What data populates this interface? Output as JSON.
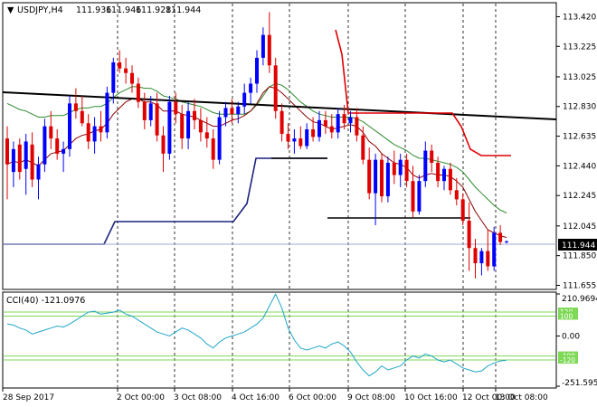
{
  "chart_data": [
    {
      "type": "candlestick",
      "title": "USDJPY,H4",
      "ohlc_header": {
        "open": "111.936",
        "high": "111.946",
        "low": "111.928",
        "close": "111.944"
      },
      "price_ticks": [
        "113.420",
        "113.225",
        "113.025",
        "112.830",
        "112.635",
        "112.440",
        "112.245",
        "112.045",
        "111.850",
        "111.655"
      ],
      "ylim": [
        111.64,
        113.5
      ],
      "current_price": "111.944",
      "current_price_value": 111.944,
      "time_labels": [
        "28 Sep 2017",
        "2 Oct 00:00",
        "3 Oct 08:00",
        "4 Oct 16:00",
        "6 Oct 00:00",
        "9 Oct 08:00",
        "10 Oct 16:00",
        "12 Oct 00:00",
        "13 Oct 08:00"
      ],
      "colors": {
        "bull": "#0000ff",
        "bear": "#e00000",
        "ma_fast": "#8b0000",
        "ma_slow": "#2e8b2e",
        "trend": "#000000",
        "stop_lower": "#1a237e",
        "stop_upper": "#e00000",
        "price_line": "#9fa8da"
      },
      "candles": [
        [
          112.62,
          112.7,
          112.22,
          112.45
        ],
        [
          112.4,
          112.6,
          112.3,
          112.55
        ],
        [
          112.58,
          112.62,
          112.35,
          112.4
        ],
        [
          112.42,
          112.65,
          112.25,
          112.6
        ],
        [
          112.58,
          112.66,
          112.3,
          112.35
        ],
        [
          112.35,
          112.5,
          112.22,
          112.45
        ],
        [
          112.45,
          112.75,
          112.4,
          112.7
        ],
        [
          112.7,
          112.8,
          112.55,
          112.62
        ],
        [
          112.62,
          112.68,
          112.48,
          112.52
        ],
        [
          112.52,
          112.6,
          112.4,
          112.55
        ],
        [
          112.55,
          112.9,
          112.5,
          112.85
        ],
        [
          112.85,
          112.95,
          112.75,
          112.8
        ],
        [
          112.8,
          112.9,
          112.7,
          112.72
        ],
        [
          112.72,
          112.78,
          112.55,
          112.6
        ],
        [
          112.6,
          112.76,
          112.52,
          112.7
        ],
        [
          112.7,
          112.8,
          112.6,
          112.66
        ],
        [
          112.66,
          112.96,
          112.62,
          112.92
        ],
        [
          112.92,
          113.15,
          112.85,
          113.12
        ],
        [
          113.12,
          113.2,
          113.05,
          113.08
        ],
        [
          113.08,
          113.15,
          112.98,
          113.05
        ],
        [
          113.05,
          113.1,
          112.92,
          112.98
        ],
        [
          112.98,
          113.02,
          112.82,
          112.86
        ],
        [
          112.86,
          112.92,
          112.68,
          112.74
        ],
        [
          112.74,
          112.9,
          112.7,
          112.85
        ],
        [
          112.85,
          112.92,
          112.6,
          112.64
        ],
        [
          112.64,
          112.7,
          112.4,
          112.52
        ],
        [
          112.52,
          112.9,
          112.48,
          112.86
        ],
        [
          112.86,
          112.92,
          112.72,
          112.78
        ],
        [
          112.78,
          112.84,
          112.55,
          112.62
        ],
        [
          112.62,
          112.86,
          112.55,
          112.8
        ],
        [
          112.8,
          112.88,
          112.68,
          112.74
        ],
        [
          112.74,
          112.82,
          112.6,
          112.66
        ],
        [
          112.66,
          112.76,
          112.56,
          112.62
        ],
        [
          112.62,
          112.68,
          112.42,
          112.48
        ],
        [
          112.48,
          112.8,
          112.45,
          112.76
        ],
        [
          112.76,
          112.86,
          112.7,
          112.82
        ],
        [
          112.82,
          112.88,
          112.72,
          112.78
        ],
        [
          112.78,
          112.86,
          112.72,
          112.83
        ],
        [
          112.83,
          112.98,
          112.78,
          112.92
        ],
        [
          112.92,
          113.02,
          112.85,
          112.98
        ],
        [
          112.98,
          113.2,
          112.92,
          113.15
        ],
        [
          113.15,
          113.35,
          113.1,
          113.3
        ],
        [
          113.3,
          113.45,
          113.05,
          113.1
        ],
        [
          113.1,
          113.15,
          112.75,
          112.8
        ],
        [
          112.8,
          112.85,
          112.6,
          112.65
        ],
        [
          112.65,
          112.72,
          112.55,
          112.6
        ],
        [
          112.6,
          112.68,
          112.52,
          112.62
        ],
        [
          112.62,
          112.7,
          112.55,
          112.57
        ],
        [
          112.57,
          112.72,
          112.55,
          112.68
        ],
        [
          112.68,
          112.76,
          112.6,
          112.63
        ],
        [
          112.63,
          112.8,
          112.6,
          112.74
        ],
        [
          112.74,
          112.8,
          112.65,
          112.7
        ],
        [
          112.7,
          112.78,
          112.62,
          112.66
        ],
        [
          112.66,
          112.82,
          112.62,
          112.78
        ],
        [
          112.78,
          112.84,
          112.68,
          112.72
        ],
        [
          112.72,
          112.8,
          112.66,
          112.76
        ],
        [
          112.76,
          112.82,
          112.6,
          112.64
        ],
        [
          112.64,
          112.7,
          112.45,
          112.48
        ],
        [
          112.48,
          112.56,
          112.22,
          112.26
        ],
        [
          112.26,
          112.52,
          112.05,
          112.48
        ],
        [
          112.48,
          112.52,
          112.2,
          112.24
        ],
        [
          112.24,
          112.5,
          112.2,
          112.46
        ],
        [
          112.46,
          112.54,
          112.32,
          112.38
        ],
        [
          112.38,
          112.52,
          112.3,
          112.48
        ],
        [
          112.48,
          112.52,
          112.3,
          112.34
        ],
        [
          112.34,
          112.44,
          112.1,
          112.14
        ],
        [
          112.14,
          112.38,
          112.12,
          112.34
        ],
        [
          112.34,
          112.6,
          112.3,
          112.54
        ],
        [
          112.54,
          112.58,
          112.4,
          112.46
        ],
        [
          112.46,
          112.5,
          112.3,
          112.34
        ],
        [
          112.34,
          112.44,
          112.28,
          112.42
        ],
        [
          112.42,
          112.46,
          112.25,
          112.28
        ],
        [
          112.28,
          112.36,
          112.18,
          112.22
        ],
        [
          112.22,
          112.26,
          112.05,
          112.08
        ],
        [
          112.08,
          112.2,
          111.75,
          111.9
        ],
        [
          111.9,
          111.96,
          111.7,
          111.8
        ],
        [
          111.8,
          111.9,
          111.72,
          111.88
        ],
        [
          111.88,
          112.02,
          111.75,
          111.78
        ],
        [
          111.78,
          112.04,
          111.75,
          112.0
        ],
        [
          112.0,
          112.05,
          111.92,
          111.94
        ],
        [
          111.94,
          111.95,
          111.93,
          111.944
        ]
      ],
      "indicators": {
        "ma_fast": [
          112.45,
          112.47,
          112.46,
          112.48,
          112.46,
          112.44,
          112.48,
          112.52,
          112.53,
          112.54,
          112.58,
          112.62,
          112.64,
          112.65,
          112.67,
          112.68,
          112.72,
          112.78,
          112.82,
          112.86,
          112.88,
          112.88,
          112.86,
          112.86,
          112.84,
          112.8,
          112.8,
          112.8,
          112.78,
          112.77,
          112.76,
          112.74,
          112.72,
          112.7,
          112.7,
          112.72,
          112.74,
          112.75,
          112.77,
          112.8,
          112.85,
          112.92,
          112.96,
          112.95,
          112.92,
          112.88,
          112.84,
          112.8,
          112.76,
          112.73,
          112.72,
          112.7,
          112.68,
          112.69,
          112.7,
          112.71,
          112.7,
          112.66,
          112.6,
          112.57,
          112.52,
          112.49,
          112.46,
          112.45,
          112.43,
          112.38,
          112.36,
          112.38,
          112.39,
          112.38,
          112.38,
          112.37,
          112.34,
          112.3,
          112.22,
          112.14,
          112.08,
          112.02,
          112.0,
          111.98,
          111.97
        ],
        "ma_slow": [
          112.85,
          112.83,
          112.81,
          112.8,
          112.78,
          112.76,
          112.76,
          112.77,
          112.77,
          112.77,
          112.79,
          112.81,
          112.82,
          112.82,
          112.83,
          112.83,
          112.85,
          112.89,
          112.92,
          112.94,
          112.96,
          112.96,
          112.95,
          112.95,
          112.93,
          112.9,
          112.89,
          112.88,
          112.86,
          112.85,
          112.84,
          112.83,
          112.81,
          112.79,
          112.78,
          112.78,
          112.78,
          112.78,
          112.78,
          112.8,
          112.84,
          112.9,
          112.96,
          112.98,
          112.97,
          112.94,
          112.9,
          112.86,
          112.83,
          112.8,
          112.78,
          112.77,
          112.76,
          112.76,
          112.76,
          112.76,
          112.75,
          112.73,
          112.7,
          112.67,
          112.64,
          112.61,
          112.58,
          112.56,
          112.54,
          112.51,
          112.49,
          112.49,
          112.48,
          112.47,
          112.46,
          112.45,
          112.43,
          112.4,
          112.35,
          112.3,
          112.26,
          112.22,
          112.18,
          112.15,
          112.13
        ]
      }
    },
    {
      "type": "line",
      "title": "CCI(40) -121.0976",
      "series": [
        {
          "name": "CCI(40)",
          "values": [
            60,
            55,
            40,
            30,
            10,
            20,
            30,
            40,
            50,
            45,
            60,
            80,
            100,
            120,
            125,
            110,
            115,
            120,
            130,
            110,
            100,
            80,
            60,
            40,
            20,
            10,
            0,
            20,
            40,
            30,
            10,
            -10,
            -40,
            -60,
            -30,
            -10,
            0,
            10,
            20,
            40,
            60,
            90,
            150,
            210,
            140,
            40,
            -20,
            -60,
            -70,
            -60,
            -50,
            -60,
            -40,
            -30,
            -50,
            -80,
            -130,
            -170,
            -200,
            -180,
            -150,
            -170,
            -160,
            -150,
            -120,
            -100,
            -110,
            -90,
            -100,
            -120,
            -130,
            -120,
            -140,
            -160,
            -170,
            -180,
            -175,
            -150,
            -135,
            -125,
            -121
          ]
        }
      ],
      "y_ticks": [
        "210.9694",
        "100",
        "0.00",
        "-100",
        "-251.5956"
      ],
      "level_labels": [
        "120",
        "100",
        "-100",
        "-120"
      ],
      "ylim": [
        -251.5956,
        210.9694
      ],
      "levels": [
        120,
        100,
        -100,
        -120
      ]
    }
  ]
}
